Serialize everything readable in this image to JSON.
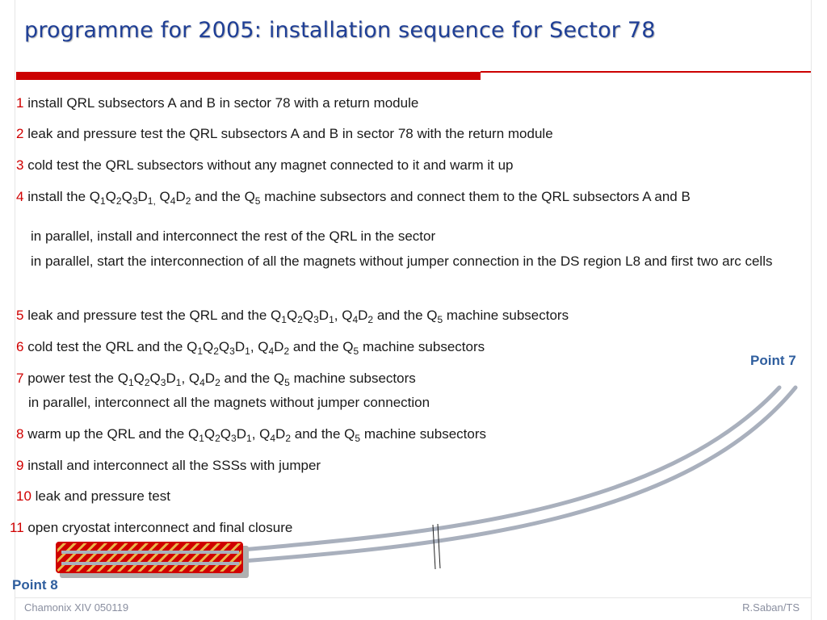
{
  "slide": {
    "title": "programme for 2005: installation sequence for Sector 78",
    "footer_left": "Chamonix XIV 050119",
    "footer_right": "R.Saban/TS"
  },
  "steps": [
    {
      "num": "1",
      "text": "install QRL subsectors A and B in sector 78 with a return module"
    },
    {
      "num": "2",
      "text": "leak and pressure test the QRL subsectors A and B in sector 78 with the return module"
    },
    {
      "num": "3",
      "text": "cold test the QRL subsectors without any magnet connected to it and warm it up"
    },
    {
      "num": "4",
      "a": "install the Q",
      "b": " and the Q",
      "c": " machine subsectors and connect them to the QRL subsectors A and B"
    },
    {
      "num": "5",
      "a": "leak and pressure test the QRL and the Q",
      "b": " and the Q",
      "c": " machine subsectors"
    },
    {
      "num": "6",
      "a": "cold test the QRL and the Q",
      "b": " and the Q",
      "c": " machine subsectors"
    },
    {
      "num": "7",
      "a": "power test the Q",
      "b": " and the Q",
      "c": " machine subsectors"
    },
    {
      "num": "8",
      "a": "warm up the QRL and the Q",
      "b": " and the Q",
      "c": " machine subsectors"
    },
    {
      "num": "9",
      "text": "install and interconnect all the SSSs with jumper"
    },
    {
      "num": "10",
      "text": "leak and pressure test"
    },
    {
      "num": "11",
      "text": "open cryostat interconnect and final closure"
    }
  ],
  "notes": {
    "parallel_1": "in parallel, install and interconnect the rest of the QRL in the sector",
    "parallel_2": "in parallel, start the interconnection of all the magnets without jumper connection in the DS region L8 and first two arc cells",
    "parallel_3": "in parallel, interconnect all the magnets without jumper connection"
  },
  "diagram": {
    "point7_label": "Point 7",
    "point8_label": "Point 8",
    "colors": {
      "tube": "#a9b0bd",
      "highlight": "#d00000",
      "highlight_stripe": "#e8b84a",
      "label": "#2f5e9e"
    }
  }
}
